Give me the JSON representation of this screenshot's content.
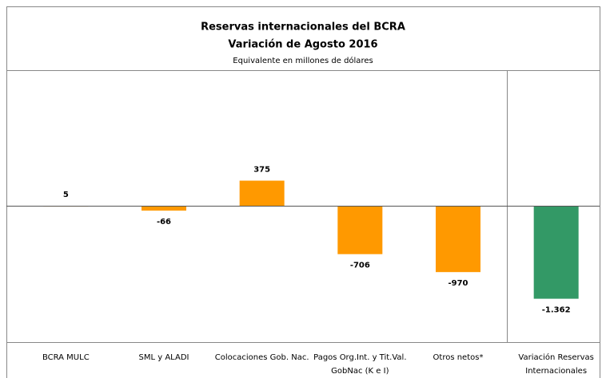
{
  "chart_data": {
    "type": "bar",
    "title": "Reservas internacionales del BCRA",
    "subtitle": "Variación de Agosto 2016",
    "y_axis_label": "Equivalente en millones de dólares",
    "categories": [
      "BCRA MULC",
      "SML y ALADI",
      "Colocaciones Gob. Nac.",
      "Pagos Org.Int. y Tit.Val. GobNac (K e I)",
      "Otros netos*",
      "Variación Reservas Internacionales"
    ],
    "values": [
      5,
      -66,
      375,
      -706,
      -970,
      -1362
    ],
    "value_labels": [
      "5",
      "-66",
      "375",
      "-706",
      "-970",
      "-1.362"
    ],
    "colors": [
      "#ff9900",
      "#ff9900",
      "#ff9900",
      "#ff9900",
      "#ff9900",
      "#339966"
    ],
    "ylim": [
      -2000,
      2000
    ],
    "grid": false
  }
}
